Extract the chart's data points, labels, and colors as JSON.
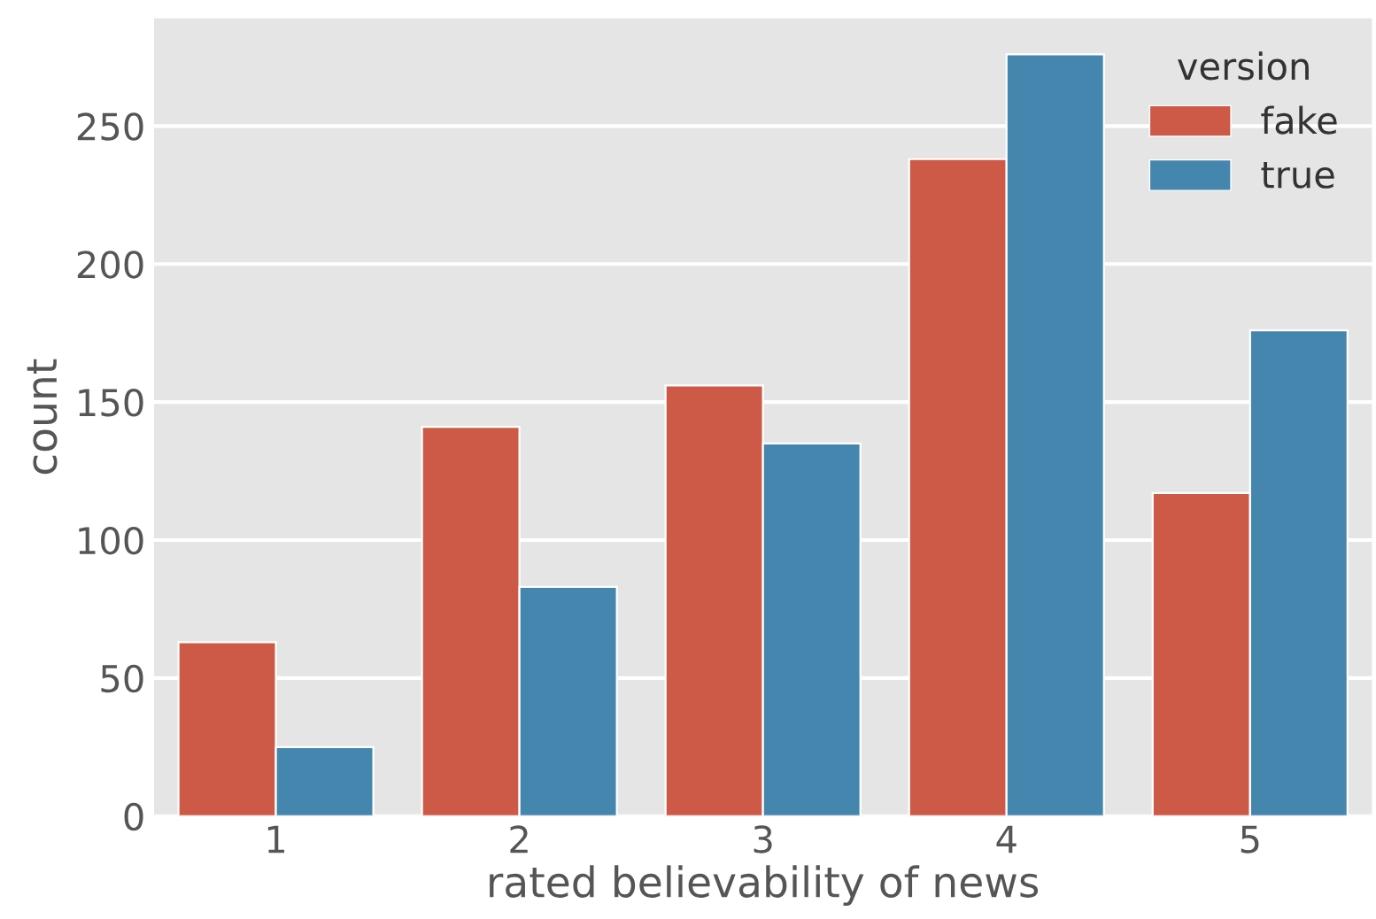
{
  "chart_data": {
    "type": "bar",
    "xlabel": "rated believability of news",
    "ylabel": "count",
    "legend_title": "version",
    "categories": [
      "1",
      "2",
      "3",
      "4",
      "5"
    ],
    "series": [
      {
        "name": "fake",
        "color": "#cd5a47",
        "values": [
          63,
          141,
          156,
          238,
          117
        ]
      },
      {
        "name": "true",
        "color": "#4586ae",
        "values": [
          25,
          83,
          135,
          276,
          176
        ]
      }
    ],
    "ylim": [
      0,
      289
    ],
    "yticks": [
      0,
      50,
      100,
      150,
      200,
      250
    ],
    "grid": "y",
    "legend": "top right"
  }
}
